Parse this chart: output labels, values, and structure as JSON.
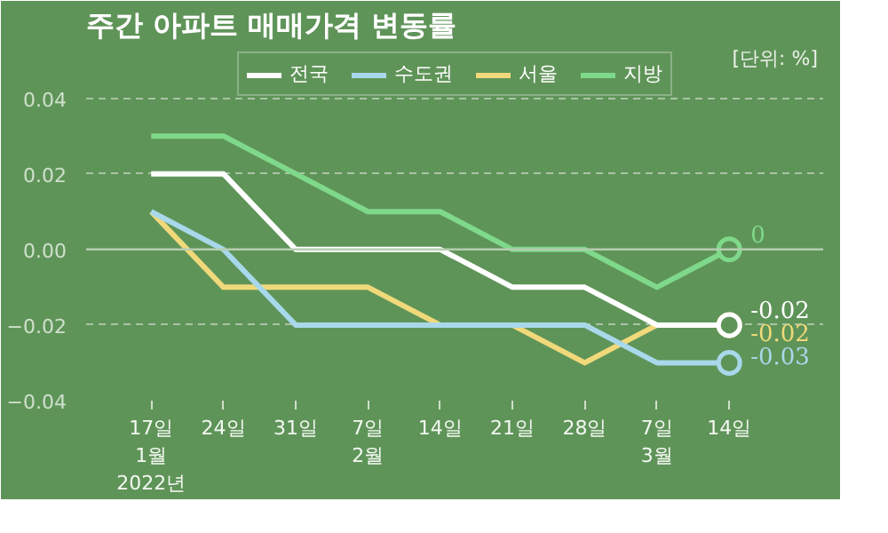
{
  "chart_data": {
    "type": "line",
    "title": "주간 아파트 매매가격 변동률",
    "annotations": [
      "[단위: %]"
    ],
    "categories": [
      "17일\n1월\n2022년",
      "24일",
      "31일",
      "7일\n2월",
      "14일",
      "21일",
      "28일",
      "7일\n3월",
      "14일"
    ],
    "series": [
      {
        "name": "전국",
        "color": "#ffffff",
        "values": [
          0.02,
          0.02,
          0,
          0,
          0,
          -0.01,
          -0.01,
          -0.02,
          -0.02
        ],
        "value_labels": [
          null,
          null,
          null,
          null,
          null,
          null,
          null,
          null,
          "-0.02"
        ]
      },
      {
        "name": "수도권",
        "color": "#a8d8ea",
        "values": [
          0.01,
          0,
          -0.02,
          -0.02,
          -0.02,
          -0.02,
          -0.02,
          -0.03,
          -0.03
        ],
        "value_labels": [
          null,
          null,
          null,
          null,
          null,
          null,
          null,
          null,
          "-0.03"
        ]
      },
      {
        "name": "서울",
        "color": "#f0d97a",
        "values": [
          0.01,
          -0.01,
          -0.01,
          -0.01,
          -0.02,
          -0.02,
          -0.03,
          -0.02,
          -0.02
        ],
        "value_labels": [
          null,
          null,
          null,
          null,
          null,
          null,
          null,
          null,
          "-0.02"
        ]
      },
      {
        "name": "지방",
        "color": "#7fd98a",
        "values": [
          0.03,
          0.03,
          0.02,
          0.01,
          0.01,
          0,
          0,
          -0.01,
          0
        ],
        "value_labels": [
          null,
          null,
          null,
          null,
          null,
          null,
          null,
          null,
          "0"
        ]
      }
    ],
    "ylim": [
      -0.04,
      0.054
    ],
    "yticks": [
      {
        "value": -0.04,
        "label": "−0.04"
      },
      {
        "value": -0.02,
        "label": "−0.02"
      },
      {
        "value": 0,
        "label": "0.00"
      },
      {
        "value": 0.02,
        "label": "0.02"
      },
      {
        "value": 0.04,
        "label": "0.04"
      }
    ],
    "grid": "y",
    "legend": "top",
    "ref_lines": [
      {
        "axis": "y",
        "value": 0,
        "label": null,
        "color": "#b5cdb0",
        "line_style": "solid"
      }
    ]
  }
}
